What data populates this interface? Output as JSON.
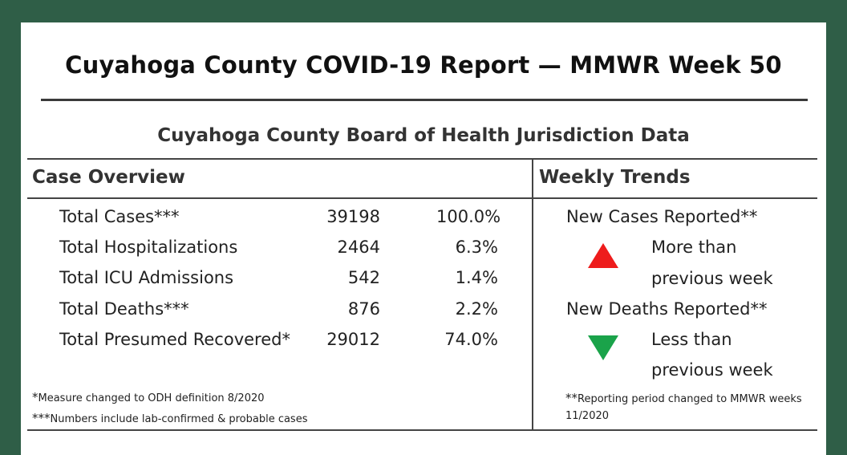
{
  "report": {
    "title": "Cuyahoga County COVID-19 Report — MMWR Week 50",
    "subtitle": "Cuyahoga County Board of Health Jurisdiction Data"
  },
  "case_overview": {
    "heading": "Case Overview",
    "rows": [
      {
        "label": "Total Cases***",
        "count": "39198",
        "percent": "100.0%"
      },
      {
        "label": "Total Hospitalizations",
        "count": "2464",
        "percent": "6.3%"
      },
      {
        "label": "Total ICU Admissions",
        "count": "542",
        "percent": "1.4%"
      },
      {
        "label": "Total Deaths***",
        "count": "876",
        "percent": "2.2%"
      },
      {
        "label": "Total Presumed Recovered*",
        "count": "29012",
        "percent": "74.0%"
      }
    ],
    "footnotes": [
      {
        "mark": "*",
        "text": "Measure changed to ODH  definition 8/2020"
      },
      {
        "mark": "***",
        "text": "Numbers include lab-confirmed & probable cases"
      }
    ]
  },
  "weekly_trends": {
    "heading": "Weekly Trends",
    "cases": {
      "label": "New Cases Reported**",
      "direction": "up",
      "color": "#ee1c1c",
      "line1": "More than",
      "line2": "previous week"
    },
    "deaths": {
      "label": "New Deaths Reported**",
      "direction": "down",
      "color": "#1aa34a",
      "line1": "Less than",
      "line2": "previous week"
    },
    "footnote": {
      "mark": "**",
      "text": "Reporting period changed to MMWR weeks 11/2020"
    }
  },
  "colors": {
    "border": "#2f5e47",
    "background": "#ffffff"
  }
}
